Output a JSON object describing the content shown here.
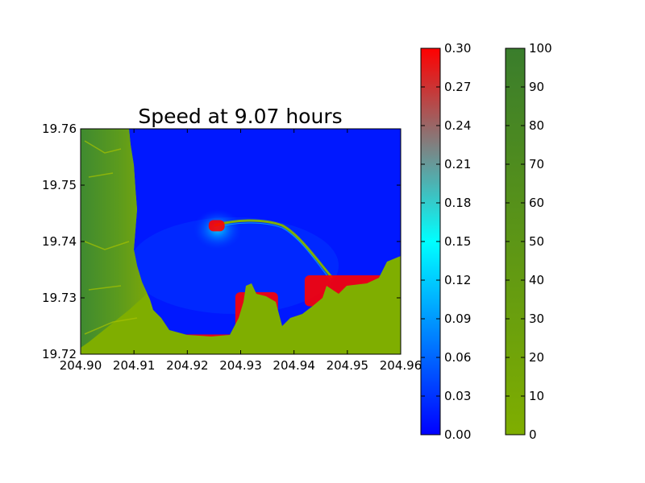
{
  "chart_data": {
    "type": "heatmap",
    "title": "Speed at 9.07 hours",
    "xlabel": "",
    "ylabel": "",
    "xlim": [
      204.9,
      204.96
    ],
    "ylim": [
      19.72,
      19.76
    ],
    "x_ticks": [
      "204.90",
      "204.91",
      "204.92",
      "204.93",
      "204.94",
      "204.95",
      "204.96"
    ],
    "y_ticks": [
      "19.72",
      "19.73",
      "19.74",
      "19.75",
      "19.76"
    ],
    "grid": false,
    "speed_colorbar": {
      "min": 0.0,
      "max": 0.3,
      "ticks": [
        "0.00",
        "0.03",
        "0.06",
        "0.09",
        "0.12",
        "0.15",
        "0.18",
        "0.21",
        "0.24",
        "0.27",
        "0.30"
      ],
      "colors": [
        "#0000ff",
        "#00ffff",
        "#ff0000"
      ]
    },
    "topography_colorbar": {
      "min": 0,
      "max": 100,
      "ticks": [
        "0",
        "10",
        "20",
        "30",
        "40",
        "50",
        "60",
        "70",
        "80",
        "90",
        "100"
      ],
      "colors": [
        "#7fae00",
        "#3a7d2c"
      ]
    },
    "water_color": "#0010ff",
    "land_color": "#7fae00",
    "highland_color": "#3f8a30",
    "fast_current_color": "#ff0000",
    "high_speed_regions": [
      {
        "name": "south-shore-band",
        "x": [
          204.917,
          204.931
        ],
        "y": [
          19.7215,
          19.7235
        ]
      },
      {
        "name": "bay-head-band",
        "x": [
          204.929,
          204.937
        ],
        "y": [
          19.7225,
          19.731
        ]
      },
      {
        "name": "east-bay-band",
        "x": [
          204.942,
          204.958
        ],
        "y": [
          19.7285,
          19.734
        ]
      },
      {
        "name": "breakwater-eddy",
        "x": [
          204.924,
          204.927
        ],
        "y": [
          19.7418,
          19.7438
        ]
      }
    ]
  }
}
